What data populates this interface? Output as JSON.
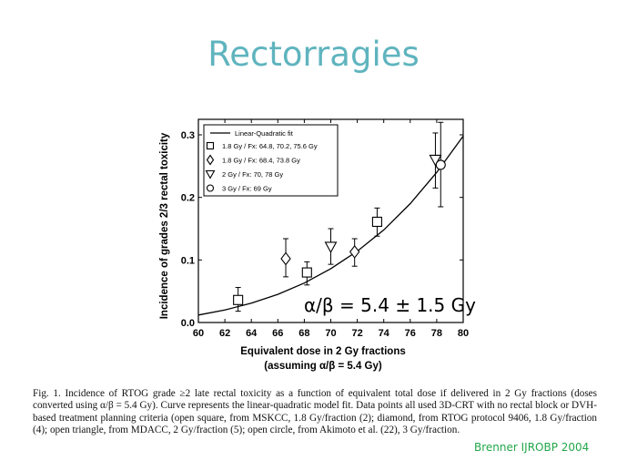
{
  "slide": {
    "title": "Rectorragies",
    "credit": "Brenner IJROBP 2004"
  },
  "caption": "Fig. 1. Incidence of RTOG grade ≥2 late rectal toxicity as a function of equivalent total dose if delivered in 2 Gy fractions (doses converted using α/β = 5.4 Gy). Curve represents the linear-quadratic model fit. Data points all used 3D-CRT with no rectal block or DVH-based treatment planning criteria (open square, from MSKCC, 1.8 Gy/fraction (2); diamond, from RTOG protocol 9406, 1.8 Gy/fraction (4); open triangle, from MDACC, 2 Gy/fraction (5); open circle, from Akimoto et al. (22), 3 Gy/fraction.",
  "chart_data": {
    "type": "scatter",
    "xlabel": "Equivalent dose in 2 Gy fractions",
    "xlabel2": "(assuming α/β = 5.4 Gy)",
    "ylabel": "Incidence of grades 2/3 rectal toxicity",
    "xlim": [
      60,
      80
    ],
    "ylim": [
      0,
      0.32
    ],
    "xticks": [
      60,
      62,
      64,
      66,
      68,
      70,
      72,
      74,
      76,
      78,
      80
    ],
    "yticks": [
      0.0,
      0.1,
      0.2,
      0.3
    ],
    "ytick_labels": [
      "0.0",
      "0.1",
      "0.2",
      "0.3"
    ],
    "annotation": "α/β = 5.4 ± 1.5 Gy",
    "legend_position": "top-left",
    "grid": false,
    "fit_curve": {
      "name": "Linear-Quadratic fit",
      "x": [
        60,
        62,
        64,
        66,
        68,
        70,
        72,
        74,
        76,
        78,
        80
      ],
      "y": [
        0.012,
        0.02,
        0.031,
        0.045,
        0.063,
        0.086,
        0.114,
        0.148,
        0.19,
        0.24,
        0.298
      ]
    },
    "series": [
      {
        "name": "1.8 Gy / Fx: 64.8, 70.2, 75.6 Gy",
        "marker": "square",
        "points": [
          {
            "x": 63.0,
            "y": 0.036,
            "ylo": 0.018,
            "yhi": 0.056
          },
          {
            "x": 68.2,
            "y": 0.08,
            "ylo": 0.06,
            "yhi": 0.097
          },
          {
            "x": 73.5,
            "y": 0.161,
            "ylo": 0.138,
            "yhi": 0.183
          }
        ]
      },
      {
        "name": "1.8 Gy / Fx: 68.4, 73.8 Gy",
        "marker": "diamond",
        "points": [
          {
            "x": 66.6,
            "y": 0.102,
            "ylo": 0.073,
            "yhi": 0.134
          },
          {
            "x": 71.8,
            "y": 0.113,
            "ylo": 0.09,
            "yhi": 0.134
          }
        ]
      },
      {
        "name": "2 Gy / Fx: 70, 78 Gy",
        "marker": "triangle-down",
        "points": [
          {
            "x": 70.0,
            "y": 0.121,
            "ylo": 0.093,
            "yhi": 0.15
          },
          {
            "x": 77.9,
            "y": 0.26,
            "ylo": 0.215,
            "yhi": 0.303
          }
        ]
      },
      {
        "name": "3 Gy / Fx: 69 Gy",
        "marker": "circle",
        "points": [
          {
            "x": 78.3,
            "y": 0.252,
            "ylo": 0.185,
            "yhi": 0.32
          }
        ]
      }
    ],
    "colors": {
      "axis": "#000000",
      "marker_fill": "#ffffff",
      "title": "#5fb4be",
      "credit": "#22a74a"
    }
  }
}
